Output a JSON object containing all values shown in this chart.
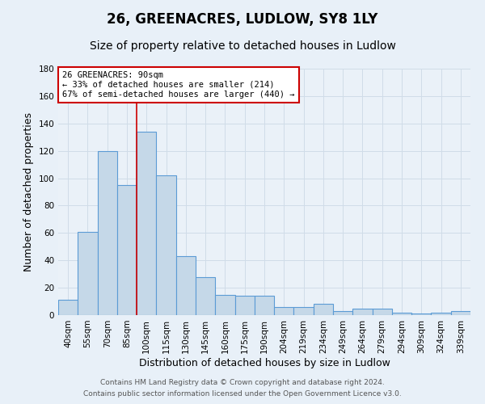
{
  "title": "26, GREENACRES, LUDLOW, SY8 1LY",
  "subtitle": "Size of property relative to detached houses in Ludlow",
  "xlabel": "Distribution of detached houses by size in Ludlow",
  "ylabel": "Number of detached properties",
  "categories": [
    "40sqm",
    "55sqm",
    "70sqm",
    "85sqm",
    "100sqm",
    "115sqm",
    "130sqm",
    "145sqm",
    "160sqm",
    "175sqm",
    "190sqm",
    "204sqm",
    "219sqm",
    "234sqm",
    "249sqm",
    "264sqm",
    "279sqm",
    "294sqm",
    "309sqm",
    "324sqm",
    "339sqm"
  ],
  "values": [
    11,
    61,
    120,
    95,
    134,
    102,
    43,
    28,
    15,
    14,
    14,
    6,
    6,
    8,
    3,
    5,
    5,
    2,
    1,
    2,
    3
  ],
  "bar_color": "#c5d8e8",
  "bar_edge_color": "#5b9bd5",
  "ylim": [
    0,
    180
  ],
  "yticks": [
    0,
    20,
    40,
    60,
    80,
    100,
    120,
    140,
    160,
    180
  ],
  "red_line_x": 3.5,
  "annotation_title": "26 GREENACRES: 90sqm",
  "annotation_line1": "← 33% of detached houses are smaller (214)",
  "annotation_line2": "67% of semi-detached houses are larger (440) →",
  "footer1": "Contains HM Land Registry data © Crown copyright and database right 2024.",
  "footer2": "Contains public sector information licensed under the Open Government Licence v3.0.",
  "bg_color": "#e8f0f8",
  "plot_bg_color": "#eaf1f8",
  "title_fontsize": 12,
  "subtitle_fontsize": 10,
  "axis_label_fontsize": 9,
  "tick_fontsize": 7.5,
  "footer_fontsize": 6.5
}
